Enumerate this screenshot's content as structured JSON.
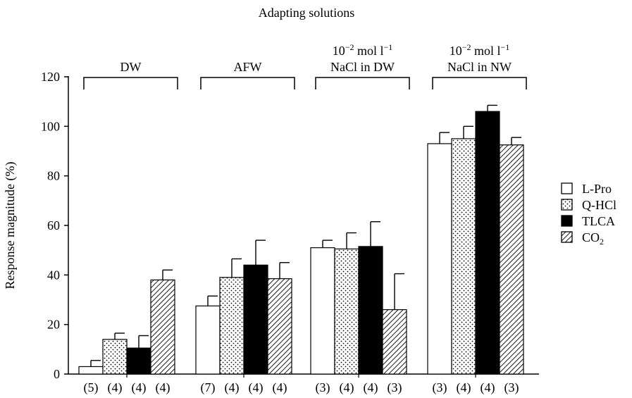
{
  "chart_data": {
    "type": "bar",
    "title": "Adapting solutions",
    "ylabel": "Response magnitude (%)",
    "xlabel": "",
    "ylim": [
      0,
      120
    ],
    "yticks": [
      0,
      20,
      40,
      60,
      80,
      100,
      120
    ],
    "grid": false,
    "legend_position": "right",
    "groups": [
      {
        "label_lines": [
          {
            "base": "DW"
          }
        ]
      },
      {
        "label_lines": [
          {
            "base": "AFW"
          }
        ]
      },
      {
        "label_lines": [
          {
            "base": "10",
            "exp": "−2",
            "rest": " mol l",
            "exp2": "−1"
          },
          {
            "base": "NaCl in DW"
          }
        ]
      },
      {
        "label_lines": [
          {
            "base": "10",
            "exp": "−2",
            "rest": " mol l",
            "exp2": "−1"
          },
          {
            "base": "NaCl in NW"
          }
        ]
      }
    ],
    "series": [
      {
        "name": "L-Pro",
        "legend_main": "L-Pro",
        "legend_sub": "",
        "pattern": "open",
        "values": [
          3,
          27.5,
          51,
          93
        ],
        "errors": [
          2.5,
          4,
          3,
          4.5
        ],
        "n": [
          "(5)",
          "(7)",
          "(3)",
          "(3)"
        ]
      },
      {
        "name": "Q-HCl",
        "legend_main": "Q-HCl",
        "legend_sub": "",
        "pattern": "dots",
        "values": [
          14,
          39,
          50.5,
          95
        ],
        "errors": [
          2.5,
          7.5,
          6.5,
          5
        ],
        "n": [
          "(4)",
          "(4)",
          "(4)",
          "(4)"
        ]
      },
      {
        "name": "TLCA",
        "legend_main": "TLCA",
        "legend_sub": "",
        "pattern": "solid",
        "values": [
          10.5,
          44,
          51.5,
          106
        ],
        "errors": [
          5,
          10,
          10,
          2.5
        ],
        "n": [
          "(4)",
          "(4)",
          "(4)",
          "(4)"
        ]
      },
      {
        "name": "CO2",
        "legend_main": "CO",
        "legend_sub": "2",
        "pattern": "hatch",
        "values": [
          38,
          38.5,
          26,
          92.5
        ],
        "errors": [
          4,
          6.5,
          14.5,
          3
        ],
        "n": [
          "(4)",
          "(4)",
          "(3)",
          "(3)"
        ]
      }
    ]
  }
}
